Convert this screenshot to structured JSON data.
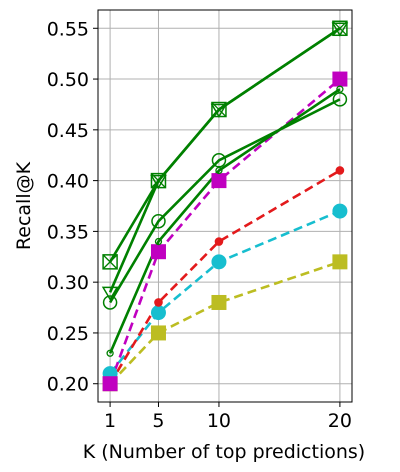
{
  "chart_data": {
    "type": "line",
    "xlabel": "K (Number of top predictions)",
    "ylabel": "Recall@K",
    "x": [
      1,
      5,
      10,
      20
    ],
    "x_ticks": [
      "1",
      "5",
      "10",
      "20"
    ],
    "xlim": [
      0,
      21
    ],
    "ylim": [
      0.182,
      0.568
    ],
    "y_ticks": [
      "0.20",
      "0.25",
      "0.30",
      "0.35",
      "0.40",
      "0.45",
      "0.50",
      "0.55"
    ],
    "y_tick_values": [
      0.2,
      0.25,
      0.3,
      0.35,
      0.4,
      0.45,
      0.5,
      0.55
    ],
    "grid": true,
    "legend": "none",
    "series": [
      {
        "values": [
          0.32,
          0.4,
          0.47,
          0.55
        ],
        "color": "#008000",
        "style": "solid",
        "marker": "square-open-x"
      },
      {
        "values": [
          0.29,
          0.4,
          0.47,
          0.55
        ],
        "color": "#008000",
        "style": "solid",
        "marker": "triangle-down-open"
      },
      {
        "values": [
          0.28,
          0.36,
          0.42,
          0.48
        ],
        "color": "#008000",
        "style": "solid",
        "marker": "circle-open"
      },
      {
        "values": [
          0.23,
          0.34,
          0.41,
          0.49
        ],
        "color": "#008000",
        "style": "solid",
        "marker": "circle-open-small"
      },
      {
        "values": [
          0.2,
          0.33,
          0.4,
          0.5
        ],
        "color": "#c000c0",
        "style": "dashed",
        "marker": "square"
      },
      {
        "values": [
          0.2,
          0.28,
          0.34,
          0.41
        ],
        "color": "#e31a1c",
        "style": "dashed",
        "marker": "circle-small"
      },
      {
        "values": [
          0.21,
          0.27,
          0.32,
          0.37
        ],
        "color": "#17becf",
        "style": "dashed",
        "marker": "circle"
      },
      {
        "values": [
          0.2,
          0.25,
          0.28,
          0.32
        ],
        "color": "#bcbd22",
        "style": "dashed",
        "marker": "square"
      }
    ]
  }
}
